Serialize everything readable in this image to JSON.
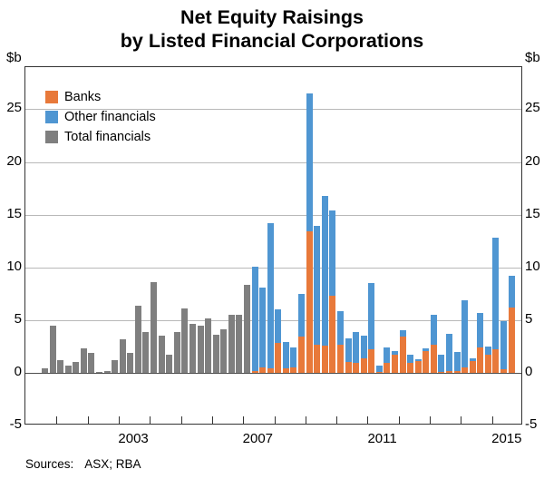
{
  "title": {
    "line1": "Net Equity Raisings",
    "line2": "by Listed Financial Corporations"
  },
  "axis": {
    "unit": "$b",
    "ymin": -5,
    "ymax": 29,
    "yticks": [
      -5,
      0,
      5,
      10,
      15,
      20,
      25
    ],
    "x_start_year": 2000,
    "x_end_year": 2016,
    "year_labels": [
      2003,
      2007,
      2011,
      2015
    ]
  },
  "legend": {
    "items": [
      {
        "label": "Banks",
        "color": "#e8793a"
      },
      {
        "label": "Other financials",
        "color": "#4f96d2"
      },
      {
        "label": "Total financials",
        "color": "#7f7f7f"
      }
    ]
  },
  "source": {
    "prefix": "Sources:",
    "value": "ASX; RBA"
  },
  "chart_data": {
    "type": "bar",
    "stacked": true,
    "title": "Net Equity Raisings by Listed Financial Corporations",
    "ylabel": "$b",
    "ylim": [
      -5,
      29
    ],
    "grid": true,
    "legend_position": "top-left-inside",
    "colors": {
      "banks": "#e8793a",
      "other_financials": "#4f96d2",
      "total_financials": "#7f7f7f"
    },
    "note": "Quarterly net equity raisings, $ billions. Grey bars = Total financials (2000Q3-2007Q1); stacked bars = Banks + Other financials (2007Q2-2015Q3).",
    "quarters": [
      {
        "p": "2000Q3",
        "total": 0.4
      },
      {
        "p": "2000Q4",
        "total": 4.5
      },
      {
        "p": "2001Q1",
        "total": 1.2
      },
      {
        "p": "2001Q2",
        "total": 0.7
      },
      {
        "p": "2001Q3",
        "total": 1.0
      },
      {
        "p": "2001Q4",
        "total": 2.3
      },
      {
        "p": "2002Q1",
        "total": 1.9
      },
      {
        "p": "2002Q2",
        "total": 0.05
      },
      {
        "p": "2002Q3",
        "total": 0.15
      },
      {
        "p": "2002Q4",
        "total": 1.2
      },
      {
        "p": "2003Q1",
        "total": 3.2
      },
      {
        "p": "2003Q2",
        "total": 1.9
      },
      {
        "p": "2003Q3",
        "total": 6.4
      },
      {
        "p": "2003Q4",
        "total": 3.9
      },
      {
        "p": "2004Q1",
        "total": 8.6
      },
      {
        "p": "2004Q2",
        "total": 3.5
      },
      {
        "p": "2004Q3",
        "total": 1.7
      },
      {
        "p": "2004Q4",
        "total": 3.9
      },
      {
        "p": "2005Q1",
        "total": 6.1
      },
      {
        "p": "2005Q2",
        "total": 4.6
      },
      {
        "p": "2005Q3",
        "total": 4.5
      },
      {
        "p": "2005Q4",
        "total": 5.2
      },
      {
        "p": "2006Q1",
        "total": 3.6
      },
      {
        "p": "2006Q2",
        "total": 4.1
      },
      {
        "p": "2006Q3",
        "total": 5.5
      },
      {
        "p": "2006Q4",
        "total": 5.5
      },
      {
        "p": "2007Q1",
        "total": 8.3
      },
      {
        "p": "2007Q2",
        "banks": 0.2,
        "other": 9.9
      },
      {
        "p": "2007Q3",
        "banks": 0.5,
        "other": 7.6
      },
      {
        "p": "2007Q4",
        "banks": 0.4,
        "other": 13.8
      },
      {
        "p": "2008Q1",
        "banks": 2.8,
        "other": 3.2
      },
      {
        "p": "2008Q2",
        "banks": 0.4,
        "other": 2.5
      },
      {
        "p": "2008Q3",
        "banks": 0.5,
        "other": 1.9
      },
      {
        "p": "2008Q4",
        "banks": 3.4,
        "other": 4.1
      },
      {
        "p": "2009Q1",
        "banks": 13.4,
        "other": 13.1
      },
      {
        "p": "2009Q2",
        "banks": 2.7,
        "other": 11.2
      },
      {
        "p": "2009Q3",
        "banks": 2.6,
        "other": 14.2
      },
      {
        "p": "2009Q4",
        "banks": 7.3,
        "other": 8.1
      },
      {
        "p": "2010Q1",
        "banks": 2.7,
        "other": 3.15
      },
      {
        "p": "2010Q2",
        "banks": 1.0,
        "other": 2.3
      },
      {
        "p": "2010Q3",
        "banks": 0.9,
        "other": 3.0
      },
      {
        "p": "2010Q4",
        "banks": 1.4,
        "other": 2.1
      },
      {
        "p": "2011Q1",
        "banks": 2.2,
        "other": 6.35
      },
      {
        "p": "2011Q2",
        "banks": 0.1,
        "other": 0.6
      },
      {
        "p": "2011Q3",
        "banks": 0.9,
        "other": 1.5
      },
      {
        "p": "2011Q4",
        "banks": 1.7,
        "other": 0.4
      },
      {
        "p": "2012Q1",
        "banks": 3.4,
        "other": 0.6
      },
      {
        "p": "2012Q2",
        "banks": 0.9,
        "other": 0.8
      },
      {
        "p": "2012Q3",
        "banks": 1.1,
        "other": 0.2
      },
      {
        "p": "2012Q4",
        "banks": 2.1,
        "other": 0.2
      },
      {
        "p": "2013Q1",
        "banks": 2.7,
        "other": 2.8
      },
      {
        "p": "2013Q2",
        "banks": 0.1,
        "other": 1.6
      },
      {
        "p": "2013Q3",
        "banks": 0.15,
        "other": 3.55
      },
      {
        "p": "2013Q4",
        "banks": 0.15,
        "other": 1.85
      },
      {
        "p": "2014Q1",
        "banks": 0.5,
        "other": 6.35
      },
      {
        "p": "2014Q2",
        "banks": 1.1,
        "other": 0.3
      },
      {
        "p": "2014Q3",
        "banks": 2.4,
        "other": 3.3
      },
      {
        "p": "2014Q4",
        "banks": 1.7,
        "other": 0.8
      },
      {
        "p": "2015Q1",
        "banks": 2.2,
        "other": 10.65
      },
      {
        "p": "2015Q2",
        "banks": 0.3,
        "other": 4.6
      },
      {
        "p": "2015Q3",
        "banks": 6.2,
        "other": 3.0
      }
    ]
  }
}
